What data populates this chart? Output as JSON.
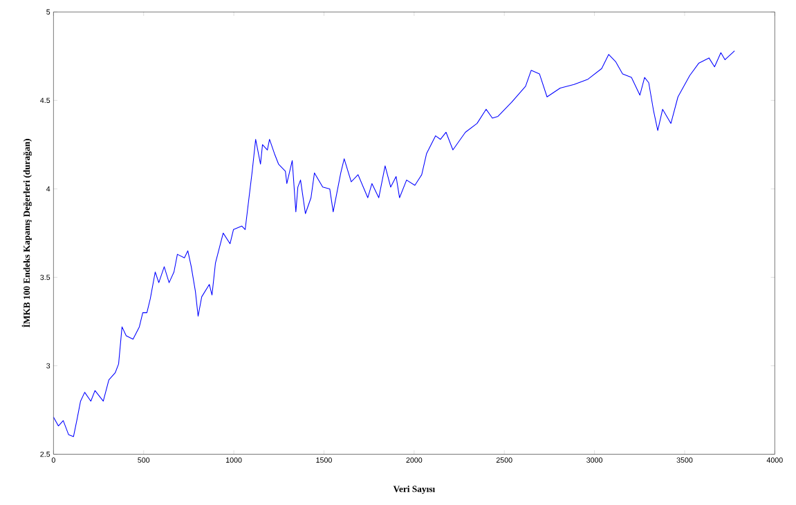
{
  "chart_data": {
    "type": "line",
    "xlabel": "Veri Sayısı",
    "ylabel": "İMKB 100 Endeks Kapanış Değerleri (durağan)",
    "xlim": [
      0,
      4000
    ],
    "ylim": [
      2.5,
      5
    ],
    "xticks": [
      0,
      500,
      1000,
      1500,
      2000,
      2500,
      3000,
      3500,
      4000
    ],
    "yticks": [
      2.5,
      3,
      3.5,
      4,
      4.5,
      5
    ],
    "grid": false,
    "marker": "none",
    "line_style": "solid",
    "series": [
      {
        "color": "#0000ff",
        "x": [
          0,
          27,
          54,
          84,
          111,
          131,
          150,
          173,
          207,
          230,
          276,
          307,
          342,
          361,
          380,
          403,
          441,
          476,
          495,
          518,
          537,
          564,
          584,
          614,
          641,
          668,
          687,
          726,
          745,
          764,
          787,
          802,
          822,
          864,
          879,
          898,
          941,
          979,
          998,
          1044,
          1063,
          1083,
          1102,
          1121,
          1148,
          1159,
          1186,
          1198,
          1225,
          1248,
          1286,
          1294,
          1324,
          1344,
          1355,
          1370,
          1397,
          1428,
          1447,
          1493,
          1532,
          1551,
          1593,
          1612,
          1651,
          1689,
          1743,
          1766,
          1804,
          1839,
          1870,
          1900,
          1919,
          1958,
          2004,
          2042,
          2069,
          2119,
          2146,
          2177,
          2215,
          2284,
          2349,
          2399,
          2434,
          2465,
          2541,
          2618,
          2649,
          2695,
          2737,
          2810,
          2887,
          2964,
          3040,
          3079,
          3117,
          3156,
          3205,
          3252,
          3278,
          3301,
          3328,
          3351,
          3378,
          3424,
          3463,
          3528,
          3578,
          3635,
          3666,
          3701,
          3724,
          3777
        ],
        "values": [
          2.71,
          2.66,
          2.69,
          2.61,
          2.6,
          2.7,
          2.8,
          2.85,
          2.8,
          2.86,
          2.8,
          2.92,
          2.96,
          3.01,
          3.22,
          3.17,
          3.15,
          3.22,
          3.3,
          3.3,
          3.38,
          3.53,
          3.47,
          3.56,
          3.47,
          3.53,
          3.63,
          3.61,
          3.65,
          3.56,
          3.42,
          3.28,
          3.39,
          3.46,
          3.4,
          3.58,
          3.75,
          3.69,
          3.77,
          3.79,
          3.77,
          3.94,
          4.1,
          4.28,
          4.14,
          4.25,
          4.22,
          4.28,
          4.2,
          4.14,
          4.1,
          4.03,
          4.16,
          3.87,
          4.01,
          4.05,
          3.86,
          3.95,
          4.09,
          4.01,
          4.0,
          3.87,
          4.09,
          4.17,
          4.04,
          4.08,
          3.95,
          4.03,
          3.95,
          4.13,
          4.01,
          4.07,
          3.95,
          4.05,
          4.02,
          4.08,
          4.2,
          4.3,
          4.28,
          4.32,
          4.22,
          4.32,
          4.37,
          4.45,
          4.4,
          4.41,
          4.49,
          4.58,
          4.67,
          4.65,
          4.52,
          4.57,
          4.59,
          4.62,
          4.68,
          4.76,
          4.72,
          4.65,
          4.63,
          4.53,
          4.63,
          4.6,
          4.44,
          4.33,
          4.45,
          4.37,
          4.52,
          4.64,
          4.71,
          4.74,
          4.69,
          4.77,
          4.73,
          4.78
        ]
      }
    ]
  }
}
